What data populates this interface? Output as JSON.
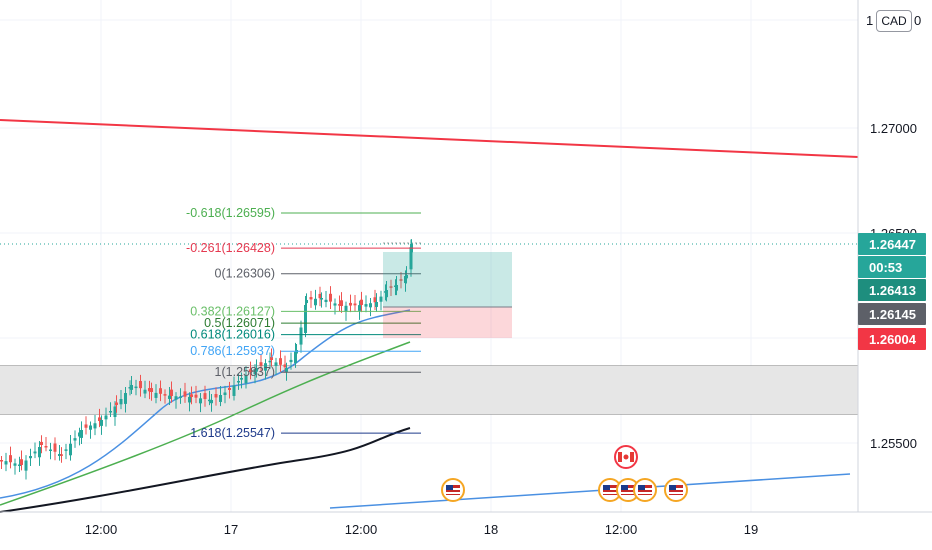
{
  "axis": {
    "currency": "CAD",
    "currency_left": "1",
    "currency_right": "0"
  },
  "chart_data": {
    "type": "candlestick",
    "y_ticks": [
      "1.27000",
      "1.26500",
      "1.25500"
    ],
    "x_ticks": [
      "12:00",
      "17",
      "12:00",
      "18",
      "12:00",
      "19"
    ],
    "price_tags": [
      {
        "label": "1.26447",
        "color": "#26a69a"
      },
      {
        "label": "00:53",
        "color": "#26a69a"
      },
      {
        "label": "1.26413",
        "color": "#1e8e7e"
      },
      {
        "label": "1.26145",
        "color": "#5d6068"
      },
      {
        "label": "1.26004",
        "color": "#f23645"
      }
    ],
    "fib_levels": [
      {
        "label": "-0.618(1.26595)",
        "price": 1.26595,
        "color": "#4caf50"
      },
      {
        "label": "-0.261(1.26428)",
        "price": 1.26428,
        "color": "#e53950"
      },
      {
        "label": "0(1.26306)",
        "price": 1.26306,
        "color": "#5d6068"
      },
      {
        "label": "0.382(1.26127)",
        "price": 1.26127,
        "color": "#6abf69"
      },
      {
        "label": "0.5(1.26071)",
        "price": 1.26071,
        "color": "#2e7d32"
      },
      {
        "label": "0.618(1.26016)",
        "price": 1.26016,
        "color": "#00897b"
      },
      {
        "label": "0.786(1.25937)",
        "price": 1.25937,
        "color": "#42a5f5"
      },
      {
        "label": "1(1.25837)",
        "price": 1.25837,
        "color": "#5d6068"
      },
      {
        "label": "1.618(1.25547)",
        "price": 1.25547,
        "color": "#1e3a8a"
      }
    ],
    "current_price": 1.26447,
    "ylim": [
      1.2505,
      1.2785
    ],
    "event_flags": [
      "us-flag-icon",
      "ca-flag-icon",
      "us-flag-icon",
      "us-flag-icon",
      "us-flag-icon",
      "us-flag-icon"
    ]
  }
}
